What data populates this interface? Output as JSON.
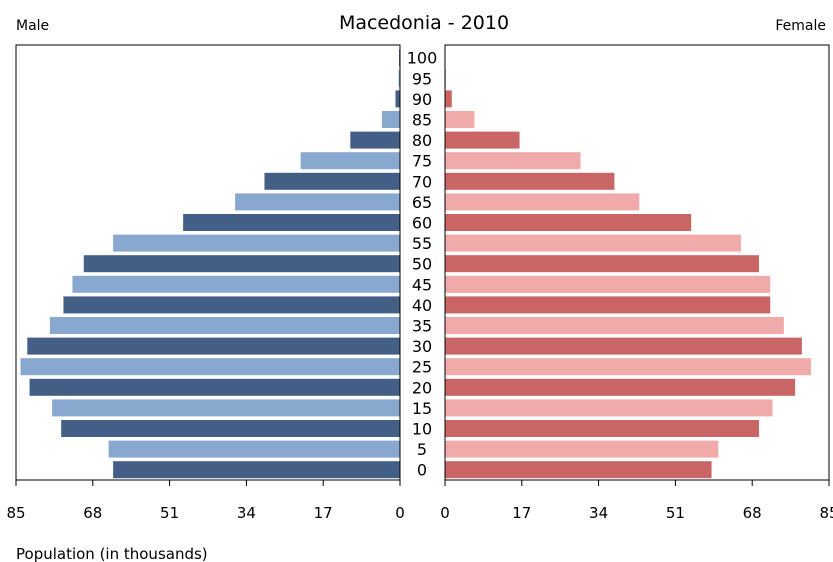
{
  "chart_data": {
    "type": "bar",
    "orientation": "horizontal-pyramid",
    "title": "Macedonia - 2010",
    "left_label": "Male",
    "right_label": "Female",
    "xlabel": "Population (in thousands)",
    "xlim": [
      0,
      85
    ],
    "x_ticks": [
      85,
      68,
      51,
      34,
      17,
      0
    ],
    "x_ticks_right": [
      0,
      17,
      34,
      51,
      68,
      85
    ],
    "categories": [
      "0",
      "5",
      "10",
      "15",
      "20",
      "25",
      "30",
      "35",
      "40",
      "45",
      "50",
      "55",
      "60",
      "65",
      "70",
      "75",
      "80",
      "85",
      "90",
      "95",
      "100"
    ],
    "series": [
      {
        "name": "Male",
        "values": [
          63.5,
          64.5,
          75,
          77,
          82,
          84,
          82.5,
          77.5,
          74.5,
          72.5,
          70,
          63.5,
          48,
          36.5,
          30,
          22,
          11,
          4,
          1,
          0.3,
          0.2
        ],
        "colors": [
          "#435f85",
          "#88a8cf"
        ]
      },
      {
        "name": "Female",
        "values": [
          59,
          60.5,
          69.5,
          72.5,
          77.5,
          81,
          79,
          75,
          72,
          72,
          69.5,
          65.5,
          54.5,
          43,
          37.5,
          30,
          16.5,
          6.5,
          1.5,
          0.2,
          0.1
        ],
        "colors": [
          "#c96565",
          "#f0aaaa"
        ]
      }
    ]
  }
}
